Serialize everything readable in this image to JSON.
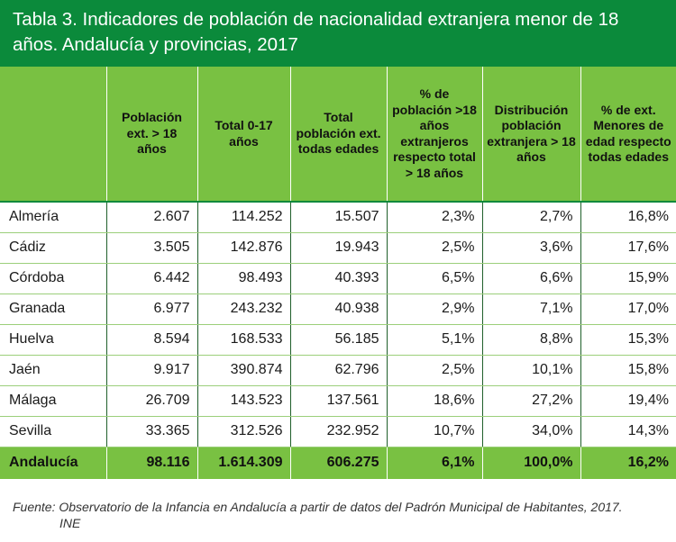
{
  "title": "Tabla 3. Indicadores de población de nacionalidad extranjera menor de 18 años. Andalucía y provincias, 2017",
  "headers": [
    "",
    "Población ext. > 18 años",
    "Total 0-17 años",
    "Total población ext. todas edades",
    "% de población >18 años extranjeros respecto total > 18 años",
    "Distribución población extranjera > 18 años",
    "% de ext. Menores de edad respecto todas edades"
  ],
  "rows": [
    [
      "Almería",
      "2.607",
      "114.252",
      "15.507",
      "2,3%",
      "2,7%",
      "16,8%"
    ],
    [
      "Cádiz",
      "3.505",
      "142.876",
      "19.943",
      "2,5%",
      "3,6%",
      "17,6%"
    ],
    [
      "Córdoba",
      "6.442",
      "98.493",
      "40.393",
      "6,5%",
      "6,6%",
      "15,9%"
    ],
    [
      "Granada",
      "6.977",
      "243.232",
      "40.938",
      "2,9%",
      "7,1%",
      "17,0%"
    ],
    [
      "Huelva",
      "8.594",
      "168.533",
      "56.185",
      "5,1%",
      "8,8%",
      "15,3%"
    ],
    [
      "Jaén",
      "9.917",
      "390.874",
      "62.796",
      "2,5%",
      "10,1%",
      "15,8%"
    ],
    [
      "Málaga",
      "26.709",
      "143.523",
      "137.561",
      "18,6%",
      "27,2%",
      "19,4%"
    ],
    [
      "Sevilla",
      "33.365",
      "312.526",
      "232.952",
      "10,7%",
      "34,0%",
      "14,3%"
    ]
  ],
  "total": [
    "Andalucía",
    "98.116",
    "1.614.309",
    "606.275",
    "6,1%",
    "100,0%",
    "16,2%"
  ],
  "source": {
    "line1": "Fuente: Observatorio de la Infancia en Andalucía a partir de datos del Padrón Municipal de Habitantes, 2017.",
    "line2": "INE"
  },
  "colors": {
    "title_bar": "#0b8a3b",
    "header_fill": "#79c142",
    "total_fill": "#79c142"
  }
}
